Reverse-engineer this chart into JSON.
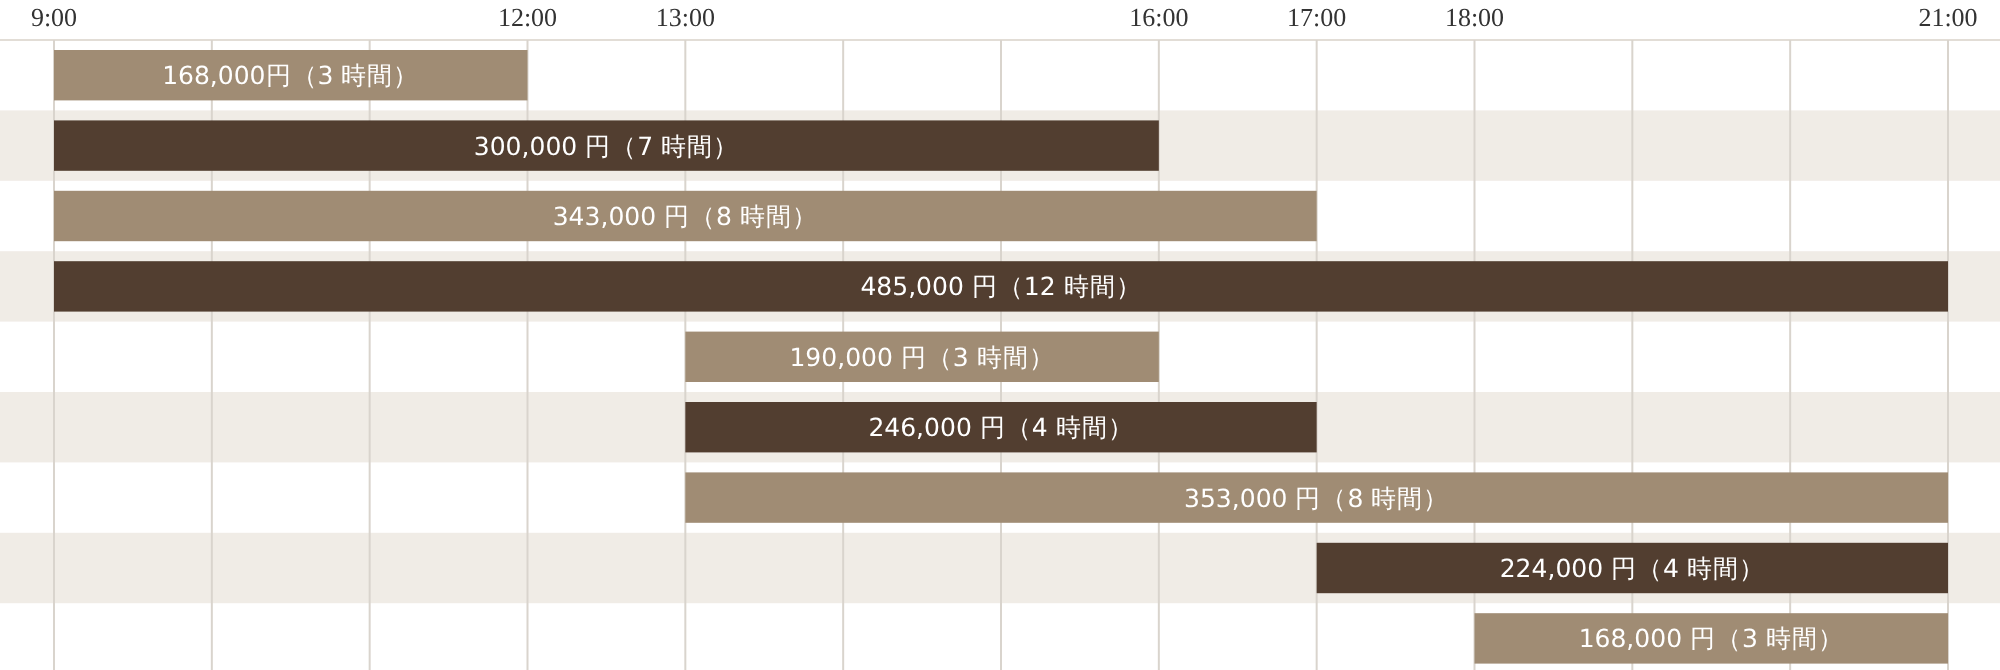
{
  "chart_data": {
    "type": "bar",
    "orientation": "horizontal",
    "categories": [
      null,
      null,
      null,
      null,
      null,
      null,
      null,
      null,
      null
    ],
    "base": [
      9,
      9,
      9,
      9,
      13,
      13,
      13,
      17,
      18
    ],
    "values": [
      3,
      7,
      8,
      12,
      3,
      4,
      8,
      4,
      3
    ],
    "colors": [
      "#a08c74",
      "#523e30",
      "#a08c74",
      "#523e30",
      "#a08c74",
      "#523e30",
      "#a08c74",
      "#523e30",
      "#a08c74"
    ],
    "value_labels": [
      "168,000円（3 時間）",
      "300,000 円（7 時間）",
      "343,000 円（8 時間）",
      "485,000 円（12 時間）",
      "190,000 円（3 時間）",
      "246,000 円（4 時間）",
      "353,000 円（8 時間）",
      "224,000 円（4 時間）",
      "168,000 円（3 時間）"
    ],
    "xlim": [
      9,
      21
    ],
    "xticks": [
      {
        "value": 9,
        "label": "9:00"
      },
      {
        "value": 10,
        "label": null
      },
      {
        "value": 11,
        "label": null
      },
      {
        "value": 12,
        "label": "12:00"
      },
      {
        "value": 13,
        "label": "13:00"
      },
      {
        "value": 14,
        "label": null
      },
      {
        "value": 15,
        "label": null
      },
      {
        "value": 16,
        "label": "16:00"
      },
      {
        "value": 17,
        "label": "17:00"
      },
      {
        "value": 18,
        "label": "18:00"
      },
      {
        "value": 19,
        "label": null
      },
      {
        "value": 20,
        "label": null
      },
      {
        "value": 21,
        "label": "21:00"
      }
    ],
    "grid": "x",
    "tick_labels": "x"
  }
}
